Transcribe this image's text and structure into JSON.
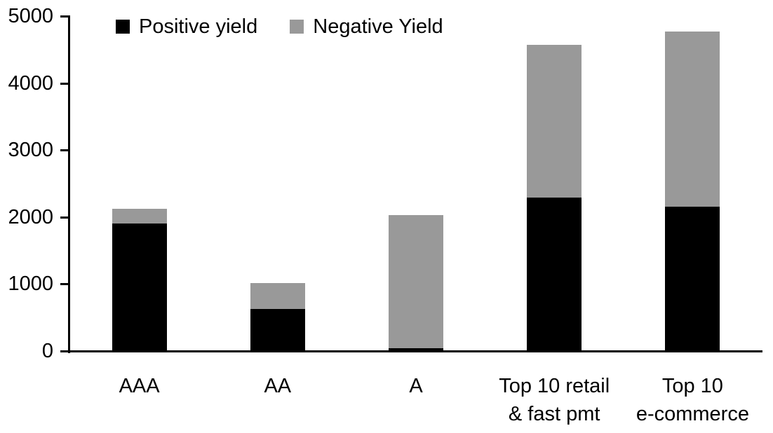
{
  "chart_data": {
    "type": "bar",
    "stacked": true,
    "title": "",
    "xlabel": "",
    "ylabel": "",
    "categories": [
      [
        "AAA"
      ],
      [
        "AA"
      ],
      [
        "A"
      ],
      [
        "Top 10 retail",
        "& fast pmt"
      ],
      [
        "Top 10",
        "e-commerce"
      ]
    ],
    "series": [
      {
        "name": "Positive yield",
        "color": "#000000",
        "values": [
          1900,
          630,
          45,
          2290,
          2150
        ]
      },
      {
        "name": "Negative Yield",
        "color": "#999999",
        "values": [
          220,
          380,
          1985,
          2280,
          2620
        ]
      }
    ],
    "stack_totals": [
      2120,
      1010,
      2030,
      4570,
      4770
    ],
    "ylim": [
      0,
      5000
    ],
    "yticks": [
      0,
      1000,
      2000,
      3000,
      4000,
      5000
    ],
    "grid": false,
    "legend_position": "top",
    "axis_color": "#000000",
    "background_color": "#ffffff"
  }
}
